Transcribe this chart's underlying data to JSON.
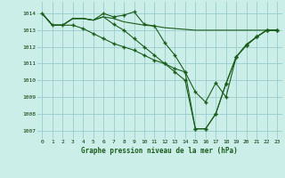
{
  "background_color": "#cceee8",
  "grid_color": "#99cccc",
  "line_color": "#1a5c1a",
  "title": "Graphe pression niveau de la mer (hPa)",
  "xlim": [
    -0.5,
    23.5
  ],
  "ylim": [
    1006.5,
    1014.7
  ],
  "yticks": [
    1007,
    1008,
    1009,
    1010,
    1011,
    1012,
    1013,
    1014
  ],
  "xticks": [
    0,
    1,
    2,
    3,
    4,
    5,
    6,
    7,
    8,
    9,
    10,
    11,
    12,
    13,
    14,
    15,
    16,
    17,
    18,
    19,
    20,
    21,
    22,
    23
  ],
  "s1": [
    1014.0,
    1013.3,
    1013.3,
    1013.7,
    1013.7,
    1013.6,
    1013.8,
    1013.7,
    1013.5,
    1013.4,
    1013.3,
    1013.25,
    1013.15,
    1013.1,
    1013.05,
    1013.0,
    1013.0,
    1013.0,
    1013.0,
    1013.0,
    1013.0,
    1013.0,
    1013.0,
    1013.0
  ],
  "s2": [
    1014.0,
    1013.3,
    1013.3,
    1013.7,
    1013.7,
    1013.6,
    1014.0,
    1013.8,
    1013.9,
    1014.1,
    1013.35,
    1013.25,
    1012.25,
    1011.5,
    1010.5,
    1009.3,
    1008.7,
    1009.85,
    1009.0,
    1011.4,
    1012.15,
    1012.6,
    1013.0,
    1013.0
  ],
  "s2_markers": [
    6,
    7,
    8,
    9,
    10,
    11,
    12,
    13,
    14,
    15,
    16,
    17,
    18,
    19,
    20,
    21,
    22,
    23
  ],
  "s3": [
    1014.0,
    1013.3,
    1013.3,
    1013.7,
    1013.7,
    1013.6,
    1013.8,
    1013.35,
    1013.0,
    1012.5,
    1012.0,
    1011.5,
    1011.0,
    1010.5,
    1010.0,
    1007.1,
    1007.1,
    1008.0,
    1009.8,
    1011.4,
    1012.1,
    1012.6,
    1013.0,
    1013.0
  ],
  "s3_markers": [
    7,
    8,
    9,
    10,
    11,
    12,
    13,
    14,
    15,
    16,
    17,
    18,
    19,
    20,
    21,
    22,
    23
  ],
  "s4": [
    1014.0,
    1013.3,
    1013.3,
    1013.3,
    1013.1,
    1012.8,
    1012.5,
    1012.2,
    1012.0,
    1011.8,
    1011.5,
    1011.2,
    1011.0,
    1010.7,
    1010.5,
    1007.1,
    1007.1,
    1008.0,
    1009.8,
    1011.4,
    1012.1,
    1012.6,
    1013.0,
    1013.0
  ],
  "s4_markers": [
    1,
    2,
    3,
    4,
    5,
    6,
    7,
    8,
    9,
    10,
    11,
    12,
    13,
    14,
    15,
    16,
    17,
    18,
    19,
    20,
    21,
    22,
    23
  ]
}
